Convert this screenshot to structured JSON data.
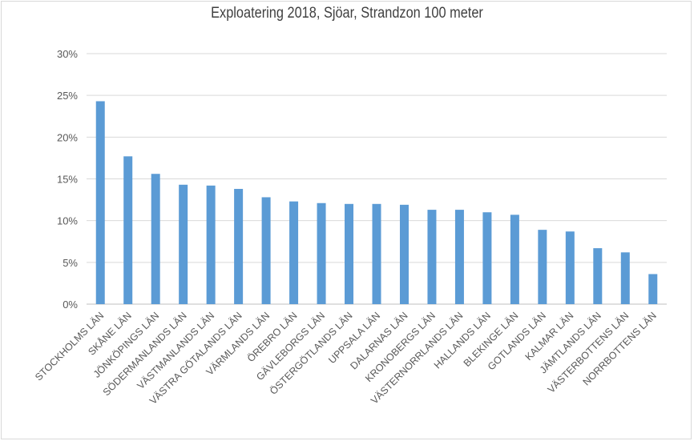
{
  "chart_data": {
    "type": "bar",
    "title": "Exploatering 2018, Sjöar, Strandzon 100 meter",
    "xlabel": "",
    "ylabel": "",
    "ylim": [
      0,
      30
    ],
    "yticks": [
      "0%",
      "5%",
      "10%",
      "15%",
      "20%",
      "25%",
      "30%"
    ],
    "grid": true,
    "legend": "none",
    "bar_color": "#5b9bd5",
    "categories": [
      "STOCKHOLMS LÄN",
      "SKÅNE LÄN",
      "JÖNKÖPINGS LÄN",
      "SÖDERMANLANDS LÄN",
      "VÄSTMANLANDS LÄN",
      "VÄSTRA GÖTALANDS LÄN",
      "VÄRMLANDS LÄN",
      "ÖREBRO LÄN",
      "GÄVLEBORGS LÄN",
      "ÖSTERGÖTLANDS LÄN",
      "UPPSALA LÄN",
      "DALARNAS LÄN",
      "KRONOBERGS LÄN",
      "VÄSTERNORRLANDS LÄN",
      "HALLANDS LÄN",
      "BLEKINGE LÄN",
      "GOTLANDS LÄN",
      "KALMAR LÄN",
      "JÄMTLANDS LÄN",
      "VÄSTERBOTTENS LÄN",
      "NORRBOTTENS LÄN"
    ],
    "values": [
      24.3,
      17.7,
      15.6,
      14.3,
      14.2,
      13.8,
      12.8,
      12.3,
      12.1,
      12.0,
      12.0,
      11.9,
      11.3,
      11.3,
      11.0,
      10.7,
      8.9,
      8.7,
      6.7,
      6.2,
      3.6
    ]
  }
}
